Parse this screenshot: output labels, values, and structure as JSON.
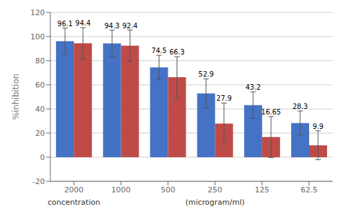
{
  "chart_data": {
    "type": "bar",
    "categories": [
      "2000",
      "1000",
      "500",
      "250",
      "125",
      "62.5"
    ],
    "series": [
      {
        "color": "#4472C4",
        "values": [
          96.1,
          94.3,
          74.5,
          52.9,
          43.2,
          28.3
        ],
        "errors": [
          11,
          11,
          10,
          12,
          11,
          10
        ]
      },
      {
        "color": "#BE4B48",
        "values": [
          94.4,
          92.4,
          66.3,
          27.9,
          16.65,
          9.9
        ],
        "errors": [
          13,
          13,
          17,
          17,
          17,
          12
        ]
      }
    ],
    "y_label": "%inhibition",
    "annotations": [
      {
        "text": "concentration"
      },
      {
        "text": "(microgram/ml)"
      }
    ],
    "ylim": [
      -20,
      120
    ],
    "yticks": [
      -20,
      0,
      20,
      40,
      60,
      80,
      100,
      120
    ],
    "grid": true,
    "data_labels": true
  }
}
